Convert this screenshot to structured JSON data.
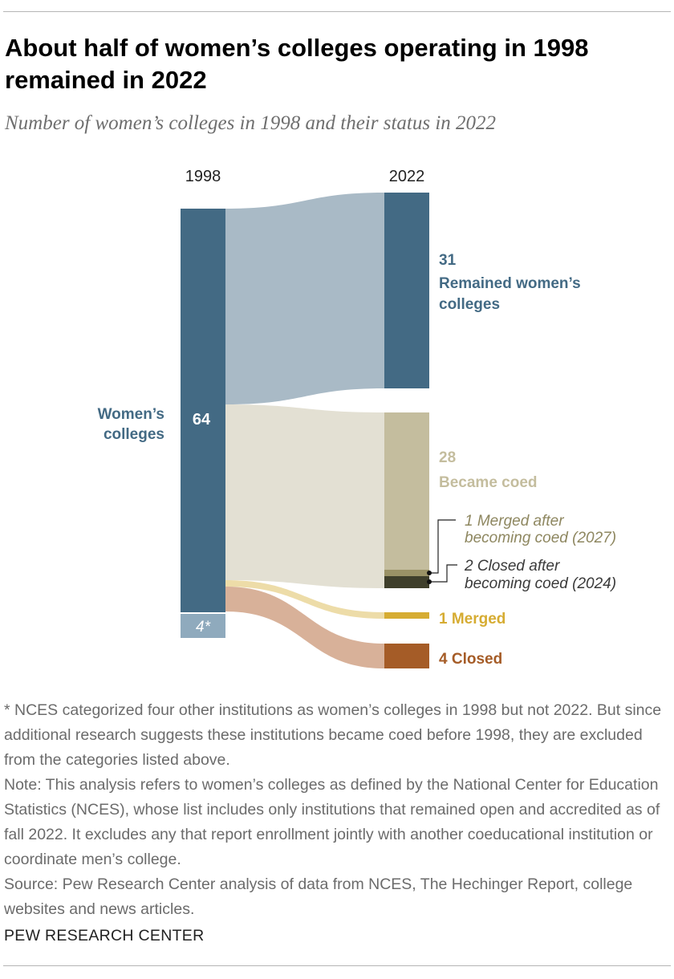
{
  "header": {
    "title": "About half of women’s colleges operating in 1998 remained in 2022",
    "subtitle": "Number of women’s colleges in 1998 and their status in 2022"
  },
  "chart_data": {
    "type": "sankey",
    "title": "About half of women’s colleges operating in 1998 remained in 2022",
    "subtitle": "Number of women’s colleges in 1998 and their status in 2022",
    "columns": [
      "1998",
      "2022"
    ],
    "source_nodes": [
      {
        "name": "Women’s colleges",
        "value": 64,
        "value_label": "64",
        "color": "#436A84"
      },
      {
        "name": "",
        "value": 4,
        "value_label": "4*",
        "color": "#8FAABD"
      }
    ],
    "target_nodes": [
      {
        "name": "Remained women’s colleges",
        "value": 31,
        "value_label": "31",
        "color": "#436A84",
        "flow_color": "#A9BAC6"
      },
      {
        "name": "Became coed",
        "value": 28,
        "value_label": "28",
        "color": "#C4BD9E",
        "flow_color": "#E3E0D3",
        "sub_segments": [
          {
            "label": "1 Merged after becoming coed (2027)",
            "value": 1,
            "color": "#9A9266",
            "text_color": "#8E8760"
          },
          {
            "label": "2 Closed after becoming coed (2024)",
            "value": 2,
            "color": "#3F3F2B",
            "text_color": "#3a3a3a"
          }
        ]
      },
      {
        "name": "Merged",
        "value": 1,
        "value_label": "1",
        "color": "#D6AC32",
        "flow_color": "#EDDCA8"
      },
      {
        "name": "Closed",
        "value": 4,
        "value_label": "4",
        "color": "#A55C27",
        "flow_color": "#D8B199"
      }
    ]
  },
  "labels": {
    "year_left": "1998",
    "year_right": "2022",
    "women_line1": "Women’s",
    "women_line2": "colleges",
    "women_value": "64",
    "excluded_value": "4*",
    "remained_value": "31",
    "remained_line1": "Remained women’s",
    "remained_line2": "colleges",
    "coed_value": "28",
    "coed_label": "Became coed",
    "merged_coed_line1": "1 Merged after",
    "merged_coed_line2": "becoming coed (2027)",
    "closed_coed_line1": "2 Closed after",
    "closed_coed_line2": "becoming coed (2024)",
    "merged_label": "1 Merged",
    "closed_label": "4 Closed"
  },
  "notes": {
    "footnote": "* NCES categorized four other institutions as women’s colleges in 1998 but not 2022. But since additional research suggests these institutions became coed before 1998, they are excluded from the categories listed above.",
    "note": "Note: This analysis refers to women’s colleges as defined by the National Center for Education Statistics (NCES), whose list includes only institutions that remained open and accredited as of fall 2022. It excludes any that report enrollment jointly with another coeducational institution or coordinate men’s college.",
    "source": "Source: Pew Research Center analysis of data from NCES, The Hechinger Report, college websites and news articles."
  },
  "brand": "PEW RESEARCH CENTER"
}
